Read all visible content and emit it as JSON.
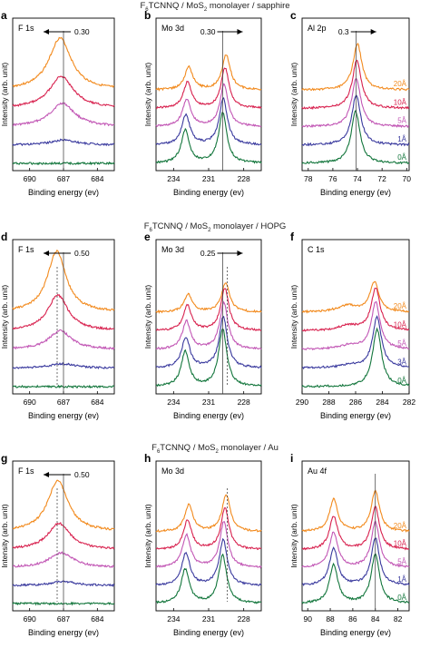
{
  "row_titles": [
    {
      "main": "F",
      "sub": "6",
      "rest": "TCNNQ / MoS",
      "sub2": "2",
      "tail": " monolayer / sapphire"
    },
    {
      "main": "F",
      "sub": "6",
      "rest": "TCNNQ / MoS",
      "sub2": "2",
      "tail": " monolayer / HOPG"
    },
    {
      "main": "F",
      "sub": "6",
      "rest": "TCNNQ / MoS",
      "sub2": "2",
      "tail": " monolayer / Au"
    }
  ],
  "colors": {
    "20A": "#f28a1d",
    "10A": "#d8224f",
    "5A": "#c257b5",
    "3A": "#3a3a9e",
    "1A": "#3a3a9e",
    "0A": "#13763c"
  },
  "chart_data": [
    {
      "panel": "a",
      "type": "line",
      "inset": "F 1s",
      "shift_label": "0.30",
      "arrow_dir": "left",
      "xlabel": "Binding energy (ev)",
      "ylabel": "Intensity (arb. unit)",
      "xlim": [
        691.5,
        682.5
      ],
      "xticks": [
        690,
        687,
        684
      ],
      "peak_x": 687.0,
      "refline": "solid",
      "series": [
        {
          "key": "20A",
          "peak_pos": 687.3,
          "width": 1.2,
          "amp": 0.62
        },
        {
          "key": "10A",
          "peak_pos": 687.2,
          "width": 1.3,
          "amp": 0.38
        },
        {
          "key": "5A",
          "peak_pos": 687.1,
          "width": 1.3,
          "amp": 0.28
        },
        {
          "key": "1A",
          "peak_pos": 687.0,
          "width": 1.4,
          "amp": 0.06
        },
        {
          "key": "0A",
          "peak_pos": 687.0,
          "width": 1.4,
          "amp": 0.0
        }
      ]
    },
    {
      "panel": "b",
      "type": "line",
      "inset": "Mo 3d",
      "shift_label": "0.30",
      "arrow_dir": "right",
      "xlabel": "Binding energy (ev)",
      "ylabel": "Intensity (arb. unit)",
      "xlim": [
        235.5,
        226.5
      ],
      "xticks": [
        234,
        231,
        228
      ],
      "refline": "solid",
      "ref_x": 229.8,
      "doublet": [
        {
          "pos": 233.0,
          "ratio": 0.65
        },
        {
          "pos": 229.8,
          "ratio": 1.0
        }
      ],
      "series": [
        {
          "key": "20A",
          "shift": -0.3,
          "amp": 0.42
        },
        {
          "key": "10A",
          "shift": -0.2,
          "amp": 0.48
        },
        {
          "key": "5A",
          "shift": -0.12,
          "amp": 0.5
        },
        {
          "key": "1A",
          "shift": -0.05,
          "amp": 0.55
        },
        {
          "key": "0A",
          "shift": 0.0,
          "amp": 0.6
        }
      ]
    },
    {
      "panel": "c",
      "type": "line",
      "inset": "Al 2p",
      "shift_label": "0.3",
      "arrow_dir": "right",
      "xlabel": "Binding energy (ev)",
      "ylabel": "Intensity (arb. unit)",
      "xlim": [
        78.5,
        69.8
      ],
      "xticks": [
        78,
        76,
        74,
        72,
        70
      ],
      "refline": "solid",
      "ref_x": 74.1,
      "labels": [
        "20Å",
        "10Å",
        "5Å",
        "1Å",
        "0Å"
      ],
      "series": [
        {
          "key": "20A",
          "peak_pos": 74.0,
          "amp": 0.55
        },
        {
          "key": "10A",
          "peak_pos": 74.05,
          "amp": 0.58
        },
        {
          "key": "5A",
          "peak_pos": 74.1,
          "amp": 0.58
        },
        {
          "key": "1A",
          "peak_pos": 74.1,
          "amp": 0.6
        },
        {
          "key": "0A",
          "peak_pos": 74.15,
          "amp": 0.62
        }
      ]
    },
    {
      "panel": "d",
      "type": "line",
      "inset": "F 1s",
      "shift_label": "0.50",
      "arrow_dir": "left",
      "xlabel": "Binding energy (ev)",
      "ylabel": "Intensity (arb. unit)",
      "xlim": [
        691.5,
        682.5
      ],
      "xticks": [
        690,
        687,
        684
      ],
      "refline": "both",
      "series": [
        {
          "key": "20A",
          "peak_pos": 687.6,
          "width": 1.0,
          "amp": 0.72
        },
        {
          "key": "10A",
          "peak_pos": 687.5,
          "width": 1.1,
          "amp": 0.42
        },
        {
          "key": "5A",
          "peak_pos": 687.3,
          "width": 1.2,
          "amp": 0.22
        },
        {
          "key": "3A",
          "peak_pos": 687.1,
          "width": 1.3,
          "amp": 0.05
        },
        {
          "key": "0A",
          "peak_pos": 687.0,
          "width": 1.3,
          "amp": 0.0
        }
      ]
    },
    {
      "panel": "e",
      "type": "line",
      "inset": "Mo 3d",
      "shift_label": "0.25",
      "arrow_dir": "right",
      "xlabel": "Binding energy (ev)",
      "ylabel": "Intensity (arb. unit)",
      "xlim": [
        235.5,
        226.5
      ],
      "xticks": [
        234,
        231,
        228
      ],
      "refline": "both",
      "ref_x": 229.8,
      "doublet": [
        {
          "pos": 233.0,
          "ratio": 0.6
        },
        {
          "pos": 229.8,
          "ratio": 1.0
        }
      ],
      "series": [
        {
          "key": "20A",
          "shift": -0.25,
          "amp": 0.35
        },
        {
          "key": "10A",
          "shift": -0.18,
          "amp": 0.5
        },
        {
          "key": "5A",
          "shift": -0.1,
          "amp": 0.55
        },
        {
          "key": "3A",
          "shift": -0.05,
          "amp": 0.6
        },
        {
          "key": "0A",
          "shift": 0.0,
          "amp": 0.68
        }
      ]
    },
    {
      "panel": "f",
      "type": "line",
      "inset": "C 1s",
      "xlabel": "Binding energy (ev)",
      "ylabel": "Intensity (arb. unit)",
      "xlim": [
        290,
        282
      ],
      "xticks": [
        290,
        288,
        286,
        284,
        282
      ],
      "labels": [
        "20Å",
        "10Å",
        "5Å",
        "3Å",
        "0Å"
      ],
      "series": [
        {
          "key": "20A",
          "peak_pos": 284.6,
          "amp": 0.35,
          "shoulder": 0.22
        },
        {
          "key": "10A",
          "peak_pos": 284.5,
          "amp": 0.5,
          "shoulder": 0.12
        },
        {
          "key": "5A",
          "peak_pos": 284.5,
          "amp": 0.55,
          "shoulder": 0.08
        },
        {
          "key": "3A",
          "peak_pos": 284.4,
          "amp": 0.6,
          "shoulder": 0.05
        },
        {
          "key": "0A",
          "peak_pos": 284.4,
          "amp": 0.68,
          "shoulder": 0.0
        }
      ]
    },
    {
      "panel": "g",
      "type": "line",
      "inset": "F 1s",
      "shift_label": "0.50",
      "arrow_dir": "left",
      "xlabel": "Binding energy (ev)",
      "ylabel": "Intensity (arb. unit)",
      "xlim": [
        691.5,
        682.5
      ],
      "xticks": [
        690,
        687,
        684
      ],
      "refline": "both",
      "series": [
        {
          "key": "20A",
          "peak_pos": 687.5,
          "width": 1.1,
          "amp": 0.62
        },
        {
          "key": "10A",
          "peak_pos": 687.4,
          "width": 1.2,
          "amp": 0.32
        },
        {
          "key": "5A",
          "peak_pos": 687.2,
          "width": 1.3,
          "amp": 0.18
        },
        {
          "key": "1A",
          "peak_pos": 687.0,
          "width": 1.3,
          "amp": 0.05
        },
        {
          "key": "0A",
          "peak_pos": 687.0,
          "width": 1.3,
          "amp": 0.0
        }
      ]
    },
    {
      "panel": "h",
      "type": "line",
      "inset": "Mo 3d",
      "xlabel": "Binding energy (ev)",
      "ylabel": "Intensity (arb. unit)",
      "xlim": [
        235.5,
        226.5
      ],
      "xticks": [
        234,
        231,
        228
      ],
      "refline": "dashed",
      "ref_x": 229.8,
      "doublet": [
        {
          "pos": 233.0,
          "ratio": 0.72
        },
        {
          "pos": 229.8,
          "ratio": 1.0
        }
      ],
      "series": [
        {
          "key": "20A",
          "shift": -0.3,
          "amp": 0.45
        },
        {
          "key": "10A",
          "shift": -0.2,
          "amp": 0.5
        },
        {
          "key": "5A",
          "shift": -0.1,
          "amp": 0.55
        },
        {
          "key": "1A",
          "shift": -0.05,
          "amp": 0.55
        },
        {
          "key": "0A",
          "shift": 0.0,
          "amp": 0.58
        }
      ]
    },
    {
      "panel": "i",
      "type": "line",
      "inset": "Au 4f",
      "xlabel": "Binding energy (ev)",
      "ylabel": "Intensity (arb. unit)",
      "xlim": [
        90.5,
        81
      ],
      "xticks": [
        90,
        88,
        86,
        84,
        82
      ],
      "refline": "solid",
      "ref_x": 84.0,
      "doublet": [
        {
          "pos": 87.7,
          "ratio": 0.78
        },
        {
          "pos": 84.0,
          "ratio": 1.0
        }
      ],
      "labels": [
        "20Å",
        "10Å",
        "5Å",
        "1Å",
        "0Å"
      ],
      "series": [
        {
          "key": "20A",
          "shift": 0.0,
          "amp": 0.5
        },
        {
          "key": "10A",
          "shift": 0.0,
          "amp": 0.52
        },
        {
          "key": "5A",
          "shift": 0.0,
          "amp": 0.55
        },
        {
          "key": "1A",
          "shift": 0.0,
          "amp": 0.58
        },
        {
          "key": "0A",
          "shift": 0.0,
          "amp": 0.6
        }
      ]
    }
  ]
}
